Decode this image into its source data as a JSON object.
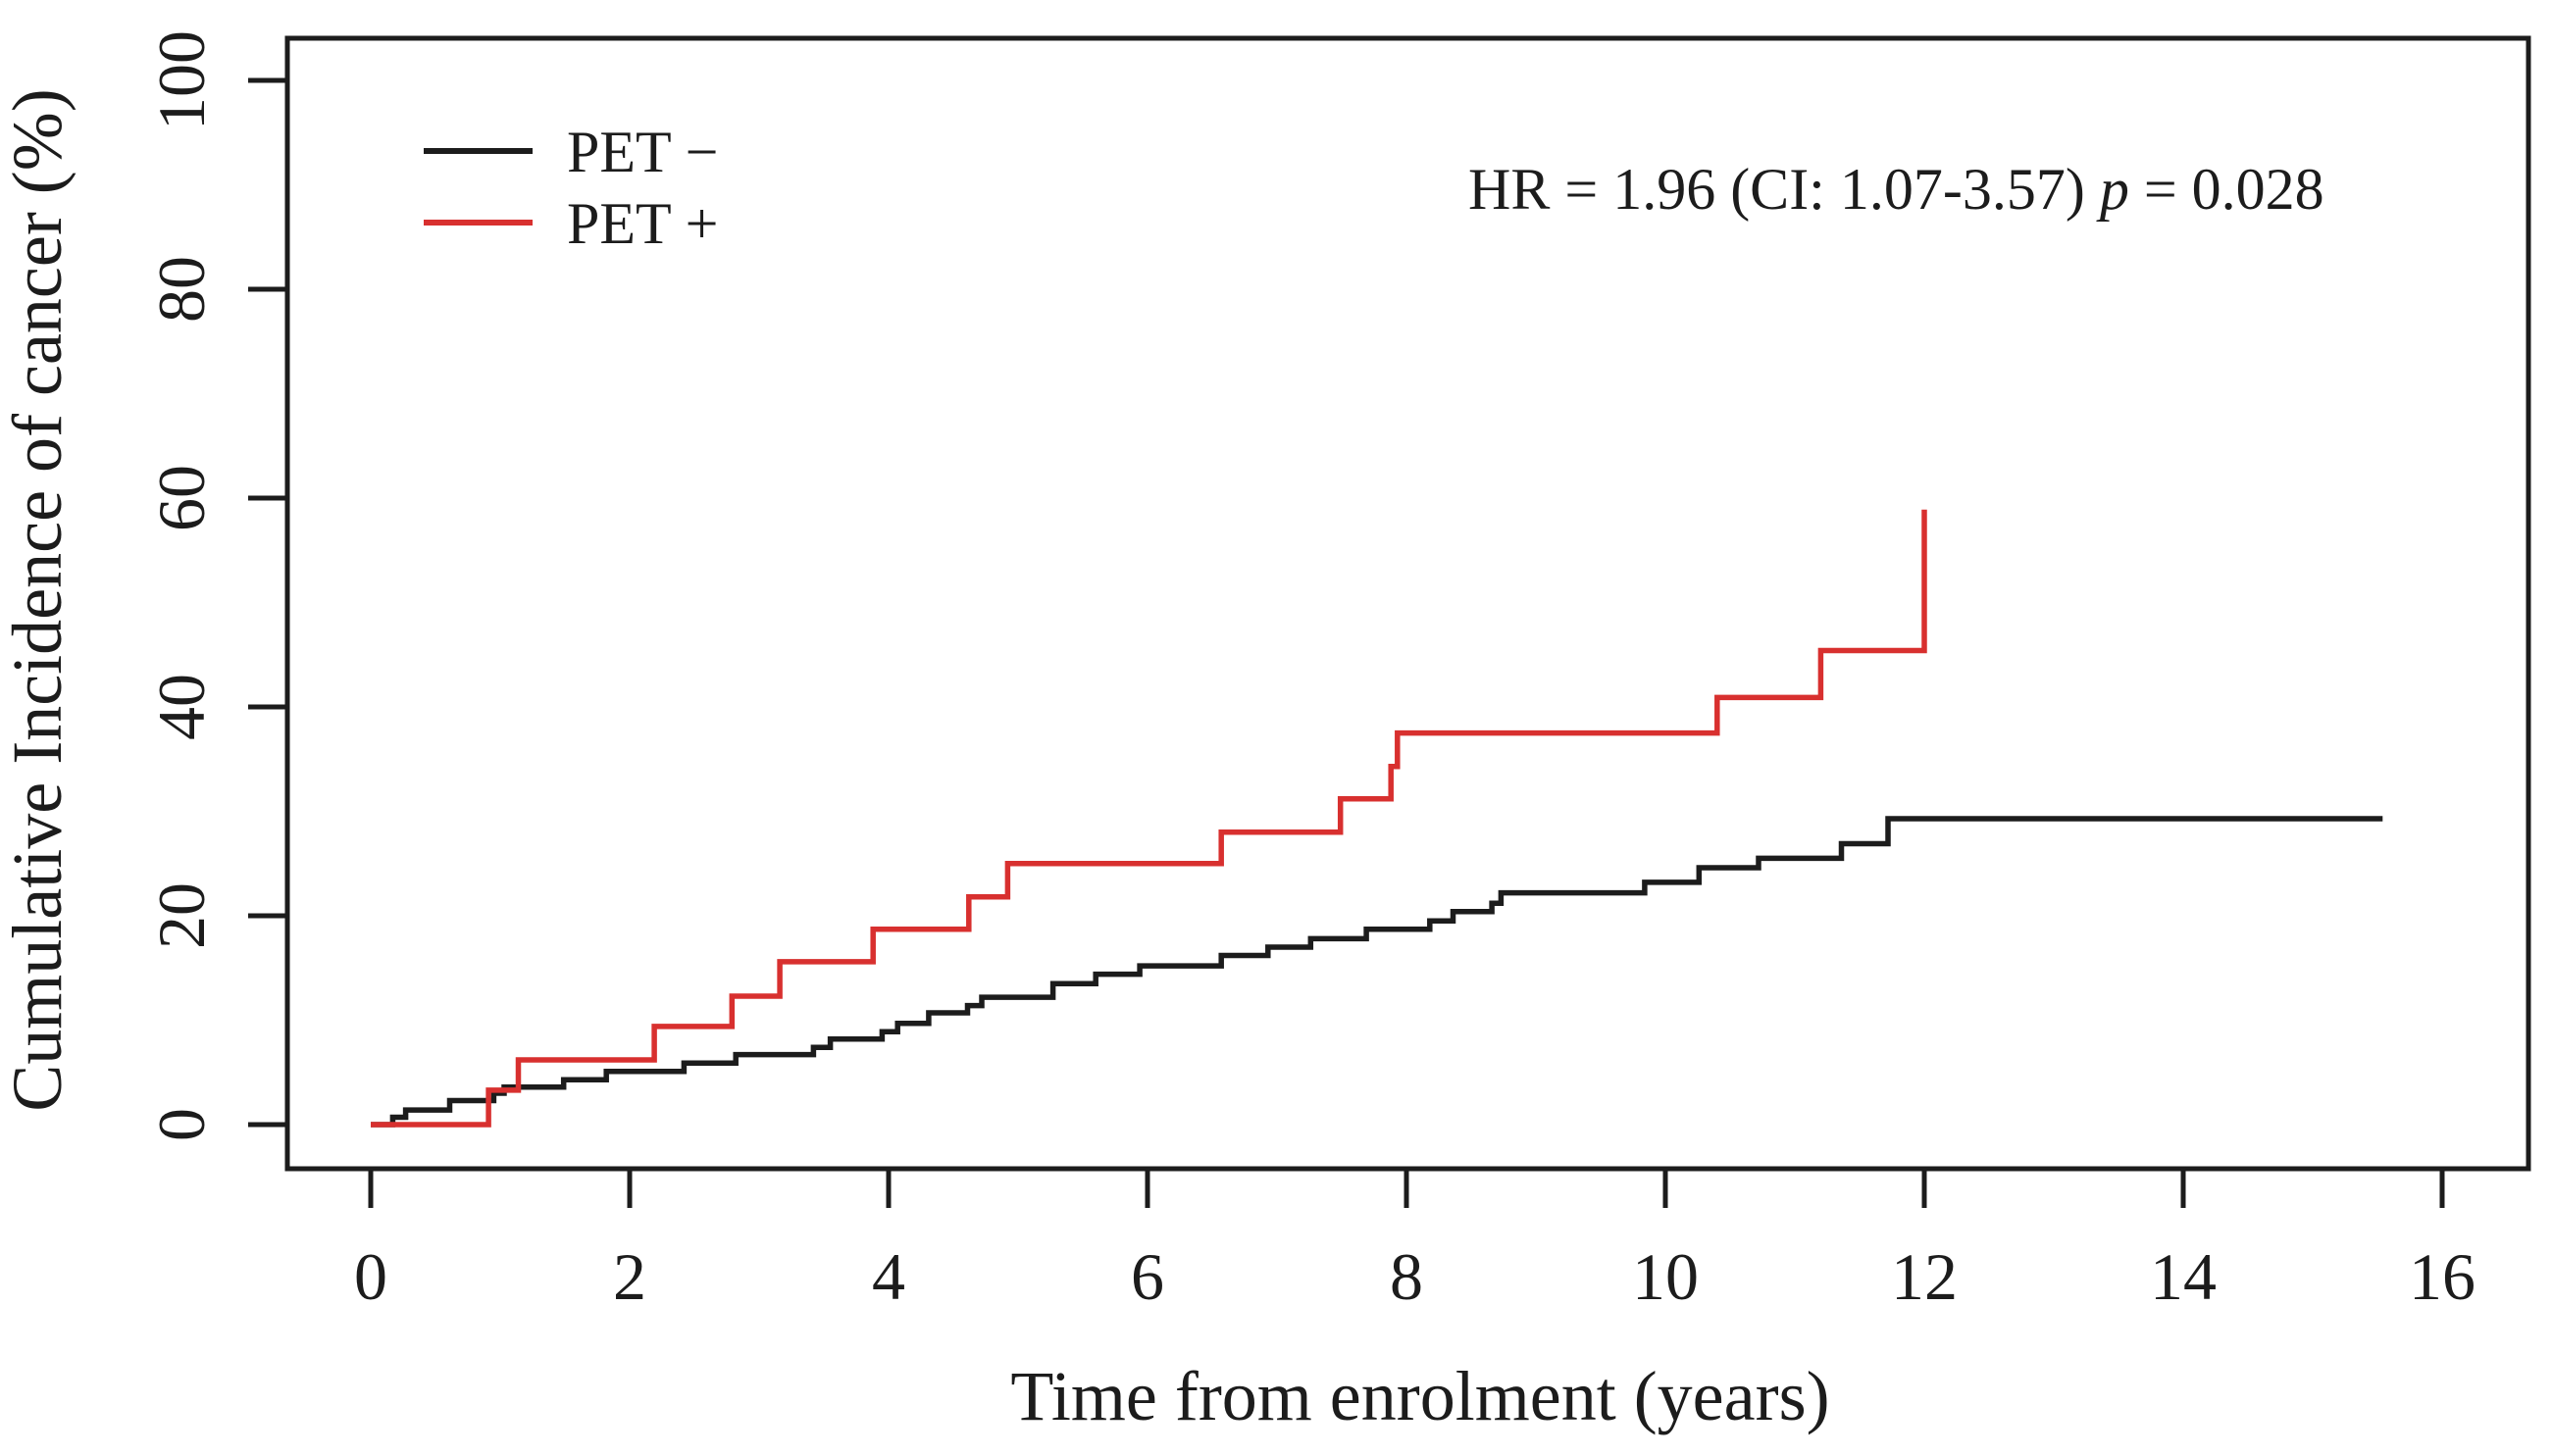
{
  "chart_data": {
    "type": "line",
    "style": "step-after-cumulative-incidence",
    "title": "",
    "xlabel": "Time from enrolment (years)",
    "ylabel": "Cumulative Incidence of cancer (%)",
    "xticks": [
      0,
      2,
      4,
      6,
      8,
      10,
      12,
      14,
      16
    ],
    "yticks": [
      0,
      20,
      40,
      60,
      80,
      100
    ],
    "xlim": [
      0,
      16.7
    ],
    "ylim": [
      0,
      104
    ],
    "grid": false,
    "legend_position": "top-left-inside",
    "annotation": {
      "text": "HR = 1.96 (CI: 1.07-3.57) p = 0.028",
      "parts": {
        "prefix": "HR = 1.96 (CI: 1.07-3.57) ",
        "p": "p",
        "suffix": " = 0.028"
      }
    },
    "legend": [
      {
        "label": "PET −",
        "color": "#1c1c1c"
      },
      {
        "label": "PET +",
        "color": "#d8302f"
      }
    ],
    "series": [
      {
        "name": "PET −",
        "color": "#1c1c1c",
        "points": [
          [
            0,
            0
          ],
          [
            0.17,
            0.7
          ],
          [
            0.27,
            1.4
          ],
          [
            0.61,
            2.3
          ],
          [
            0.95,
            3.0
          ],
          [
            1.03,
            3.6
          ],
          [
            1.49,
            4.3
          ],
          [
            1.82,
            5.1
          ],
          [
            2.42,
            5.9
          ],
          [
            2.82,
            6.7
          ],
          [
            3.42,
            7.4
          ],
          [
            3.55,
            8.2
          ],
          [
            3.95,
            8.9
          ],
          [
            4.07,
            9.7
          ],
          [
            4.31,
            10.7
          ],
          [
            4.61,
            11.4
          ],
          [
            4.72,
            12.2
          ],
          [
            5.27,
            13.5
          ],
          [
            5.6,
            14.4
          ],
          [
            5.94,
            15.2
          ],
          [
            6.57,
            16.2
          ],
          [
            6.93,
            17.0
          ],
          [
            7.26,
            17.8
          ],
          [
            7.69,
            18.7
          ],
          [
            8.18,
            19.5
          ],
          [
            8.36,
            20.4
          ],
          [
            8.66,
            21.2
          ],
          [
            8.73,
            22.2
          ],
          [
            9.84,
            23.2
          ],
          [
            10.26,
            24.6
          ],
          [
            10.72,
            25.5
          ],
          [
            11.36,
            26.9
          ],
          [
            11.72,
            29.3
          ],
          [
            15.54,
            29.3
          ]
        ]
      },
      {
        "name": "PET +",
        "color": "#d8302f",
        "points": [
          [
            0,
            0
          ],
          [
            0.91,
            3.3
          ],
          [
            1.14,
            6.2
          ],
          [
            2.19,
            9.4
          ],
          [
            2.79,
            12.3
          ],
          [
            3.16,
            15.6
          ],
          [
            3.88,
            18.7
          ],
          [
            4.62,
            21.8
          ],
          [
            4.92,
            25.0
          ],
          [
            6.57,
            28.0
          ],
          [
            7.49,
            31.2
          ],
          [
            7.88,
            34.3
          ],
          [
            7.93,
            37.5
          ],
          [
            10.4,
            40.9
          ],
          [
            11.2,
            45.4
          ],
          [
            12.0,
            58.9
          ]
        ]
      }
    ]
  }
}
